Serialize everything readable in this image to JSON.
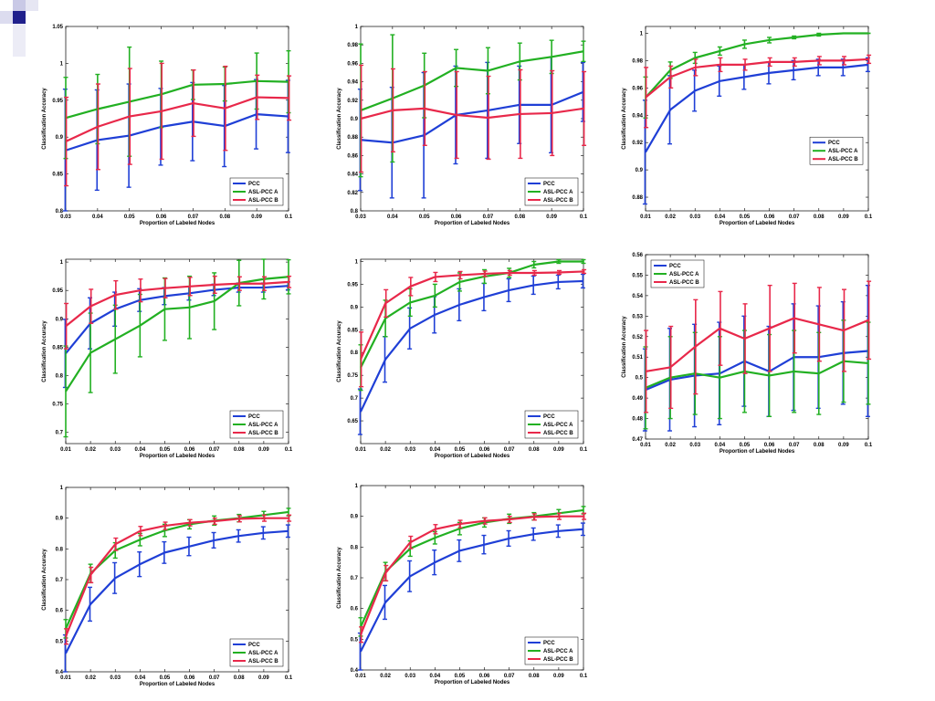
{
  "colors": {
    "PCC": "#1f3fd6",
    "ASL-PCC A": "#22b022",
    "ASL-PCC B": "#e8284a"
  },
  "chart_data": [
    {
      "type": "line",
      "xlabel": "Proportion of Labeled Nodes",
      "ylabel": "Classification Accuracy",
      "xlim": [
        0.03,
        0.1
      ],
      "ylim": [
        0.8,
        1.05
      ],
      "xticks": [
        0.03,
        0.04,
        0.05,
        0.06,
        0.07,
        0.08,
        0.09,
        0.1
      ],
      "xtick_labels": [
        "0.03",
        "0.04",
        "0.05",
        "0.06",
        "0.07",
        "0.08",
        "0.09",
        "0.1"
      ],
      "yticks": [
        0.8,
        0.85,
        0.9,
        0.95,
        1,
        1.05
      ],
      "ytick_labels": [
        "0.8",
        "0.85",
        "0.9",
        "0.95",
        "1",
        "1.05"
      ],
      "legend_loc": "bottom-right",
      "x": [
        0.03,
        0.04,
        0.05,
        0.06,
        0.07,
        0.08,
        0.09,
        0.1
      ],
      "series": [
        {
          "name": "PCC",
          "values": [
            0.882,
            0.896,
            0.902,
            0.914,
            0.921,
            0.915,
            0.931,
            0.928
          ],
          "err": [
            0.083,
            0.068,
            0.07,
            0.052,
            0.053,
            0.055,
            0.047,
            0.049
          ]
        },
        {
          "name": "ASL-PCC A",
          "values": [
            0.926,
            0.938,
            0.948,
            0.958,
            0.971,
            0.972,
            0.976,
            0.975
          ],
          "err": [
            0.055,
            0.047,
            0.074,
            0.045,
            0.02,
            0.023,
            0.038,
            0.042
          ]
        },
        {
          "name": "ASL-PCC B",
          "values": [
            0.894,
            0.914,
            0.928,
            0.935,
            0.946,
            0.939,
            0.954,
            0.953
          ],
          "err": [
            0.06,
            0.058,
            0.065,
            0.065,
            0.045,
            0.057,
            0.03,
            0.03
          ]
        }
      ]
    },
    {
      "type": "line",
      "xlabel": "Proportion of Labeled Nodes",
      "ylabel": "Classification Accuracy",
      "xlim": [
        0.03,
        0.1
      ],
      "ylim": [
        0.8,
        1
      ],
      "xticks": [
        0.03,
        0.04,
        0.05,
        0.06,
        0.07,
        0.08,
        0.09,
        0.1
      ],
      "xtick_labels": [
        "0.03",
        "0.04",
        "0.05",
        "0.06",
        "0.07",
        "0.08",
        "0.09",
        "0.1"
      ],
      "yticks": [
        0.8,
        0.82,
        0.84,
        0.86,
        0.88,
        0.9,
        0.92,
        0.94,
        0.96,
        0.98,
        1
      ],
      "ytick_labels": [
        "0.8",
        "0.82",
        "0.84",
        "0.86",
        "0.88",
        "0.9",
        "0.92",
        "0.94",
        "0.96",
        "0.98",
        "1"
      ],
      "legend_loc": "bottom-right",
      "x": [
        0.03,
        0.04,
        0.05,
        0.06,
        0.07,
        0.08,
        0.09,
        0.1
      ],
      "series": [
        {
          "name": "PCC",
          "values": [
            0.877,
            0.874,
            0.882,
            0.904,
            0.909,
            0.915,
            0.915,
            0.929
          ],
          "err": [
            0.055,
            0.06,
            0.068,
            0.053,
            0.052,
            0.042,
            0.052,
            0.032
          ]
        },
        {
          "name": "ASL-PCC A",
          "values": [
            0.909,
            0.922,
            0.936,
            0.955,
            0.952,
            0.962,
            0.967,
            0.973
          ],
          "err": [
            0.072,
            0.069,
            0.035,
            0.02,
            0.025,
            0.02,
            0.018,
            0.011
          ]
        },
        {
          "name": "ASL-PCC B",
          "values": [
            0.9,
            0.909,
            0.911,
            0.904,
            0.901,
            0.905,
            0.906,
            0.911
          ],
          "err": [
            0.058,
            0.045,
            0.04,
            0.047,
            0.045,
            0.048,
            0.046,
            0.04
          ]
        }
      ]
    },
    {
      "type": "line",
      "xlabel": "Proportion of Labeled Nodes",
      "ylabel": "Classification Accuracy",
      "xlim": [
        0.01,
        0.1
      ],
      "ylim": [
        0.87,
        1.005
      ],
      "xticks": [
        0.01,
        0.02,
        0.03,
        0.04,
        0.05,
        0.06,
        0.07,
        0.08,
        0.09,
        0.1
      ],
      "xtick_labels": [
        "0.01",
        "0.02",
        "0.03",
        "0.04",
        "0.05",
        "0.06",
        "0.07",
        "0.08",
        "0.09",
        "0.1"
      ],
      "yticks": [
        0.88,
        0.9,
        0.92,
        0.94,
        0.96,
        0.98,
        1
      ],
      "ytick_labels": [
        "0.88",
        "0.9",
        "0.92",
        "0.94",
        "0.96",
        "0.98",
        "1"
      ],
      "legend_loc": "center-right",
      "x": [
        0.01,
        0.02,
        0.03,
        0.04,
        0.05,
        0.06,
        0.07,
        0.08,
        0.09,
        0.1
      ],
      "series": [
        {
          "name": "PCC",
          "values": [
            0.913,
            0.944,
            0.958,
            0.965,
            0.968,
            0.971,
            0.973,
            0.975,
            0.975,
            0.977
          ],
          "err": [
            0.038,
            0.025,
            0.015,
            0.011,
            0.009,
            0.008,
            0.007,
            0.006,
            0.006,
            0.005
          ]
        },
        {
          "name": "ASL-PCC A",
          "values": [
            0.953,
            0.973,
            0.982,
            0.987,
            0.992,
            0.995,
            0.997,
            0.999,
            1.0,
            1.0
          ],
          "err": [
            0.015,
            0.006,
            0.004,
            0.003,
            0.003,
            0.002,
            0.001,
            0.001,
            0.0,
            0.0
          ]
        },
        {
          "name": "ASL-PCC B",
          "values": [
            0.953,
            0.968,
            0.975,
            0.977,
            0.977,
            0.979,
            0.979,
            0.98,
            0.98,
            0.981
          ],
          "err": [
            0.022,
            0.008,
            0.006,
            0.005,
            0.004,
            0.003,
            0.003,
            0.003,
            0.003,
            0.003
          ]
        }
      ]
    },
    {
      "type": "line",
      "xlabel": "Proportion of Labeled Nodes",
      "ylabel": "Classification Accuracy",
      "xlim": [
        0.01,
        0.1
      ],
      "ylim": [
        0.68,
        1.005
      ],
      "xticks": [
        0.01,
        0.02,
        0.03,
        0.04,
        0.05,
        0.06,
        0.07,
        0.08,
        0.09,
        0.1
      ],
      "xtick_labels": [
        "0.01",
        "0.02",
        "0.03",
        "0.04",
        "0.05",
        "0.06",
        "0.07",
        "0.08",
        "0.09",
        "0.1"
      ],
      "yticks": [
        0.7,
        0.75,
        0.8,
        0.85,
        0.9,
        0.95,
        1
      ],
      "ytick_labels": [
        "0.7",
        "0.75",
        "0.8",
        "0.85",
        "0.9",
        "0.95",
        "1"
      ],
      "legend_loc": "bottom-right",
      "x": [
        0.01,
        0.02,
        0.03,
        0.04,
        0.05,
        0.06,
        0.07,
        0.08,
        0.09,
        0.1
      ],
      "series": [
        {
          "name": "PCC",
          "values": [
            0.839,
            0.892,
            0.917,
            0.933,
            0.94,
            0.945,
            0.951,
            0.955,
            0.955,
            0.958
          ],
          "err": [
            0.06,
            0.045,
            0.03,
            0.02,
            0.015,
            0.012,
            0.01,
            0.008,
            0.008,
            0.007
          ]
        },
        {
          "name": "ASL-PCC A",
          "values": [
            0.772,
            0.84,
            0.864,
            0.888,
            0.917,
            0.92,
            0.931,
            0.963,
            0.97,
            0.974
          ],
          "err": [
            0.08,
            0.07,
            0.06,
            0.055,
            0.055,
            0.055,
            0.05,
            0.04,
            0.035,
            0.03
          ]
        },
        {
          "name": "ASL-PCC B",
          "values": [
            0.887,
            0.922,
            0.942,
            0.95,
            0.954,
            0.957,
            0.96,
            0.962,
            0.962,
            0.965
          ],
          "err": [
            0.04,
            0.03,
            0.025,
            0.02,
            0.017,
            0.016,
            0.015,
            0.012,
            0.012,
            0.01
          ]
        }
      ]
    },
    {
      "type": "line",
      "xlabel": "Proportion of Labeled Nodes",
      "ylabel": "Classification Accuracy",
      "xlim": [
        0.01,
        0.1
      ],
      "ylim": [
        0.6,
        1.005
      ],
      "xticks": [
        0.01,
        0.02,
        0.03,
        0.04,
        0.05,
        0.06,
        0.07,
        0.08,
        0.09,
        0.1
      ],
      "xtick_labels": [
        "0.01",
        "0.02",
        "0.03",
        "0.04",
        "0.05",
        "0.06",
        "0.07",
        "0.08",
        "0.09",
        "0.1"
      ],
      "yticks": [
        0.65,
        0.7,
        0.75,
        0.8,
        0.85,
        0.9,
        0.95,
        1
      ],
      "ytick_labels": [
        "0.65",
        "0.7",
        "0.75",
        "0.8",
        "0.85",
        "0.9",
        "0.95",
        "1"
      ],
      "legend_loc": "bottom-right",
      "x": [
        0.01,
        0.02,
        0.03,
        0.04,
        0.05,
        0.06,
        0.07,
        0.08,
        0.09,
        0.1
      ],
      "series": [
        {
          "name": "PCC",
          "values": [
            0.67,
            0.785,
            0.853,
            0.883,
            0.905,
            0.922,
            0.937,
            0.948,
            0.955,
            0.957
          ],
          "err": [
            0.05,
            0.05,
            0.045,
            0.04,
            0.035,
            0.03,
            0.025,
            0.02,
            0.015,
            0.015
          ]
        },
        {
          "name": "ASL-PCC A",
          "values": [
            0.767,
            0.875,
            0.91,
            0.925,
            0.955,
            0.967,
            0.975,
            0.993,
            1.0,
            1.0
          ],
          "err": [
            0.05,
            0.04,
            0.03,
            0.025,
            0.02,
            0.015,
            0.01,
            0.007,
            0.004,
            0.004
          ]
        },
        {
          "name": "ASL-PCC B",
          "values": [
            0.785,
            0.908,
            0.945,
            0.966,
            0.97,
            0.973,
            0.975,
            0.975,
            0.976,
            0.978
          ],
          "err": [
            0.06,
            0.03,
            0.02,
            0.01,
            0.008,
            0.006,
            0.005,
            0.005,
            0.004,
            0.004
          ]
        }
      ]
    },
    {
      "type": "line",
      "xlabel": "Proportion of Labeled Nodes",
      "ylabel": "Classification Accuracy",
      "xlim": [
        0.01,
        0.1
      ],
      "ylim": [
        0.47,
        0.56
      ],
      "xticks": [
        0.01,
        0.02,
        0.03,
        0.04,
        0.05,
        0.06,
        0.07,
        0.08,
        0.09,
        0.1
      ],
      "xtick_labels": [
        "0.01",
        "0.02",
        "0.03",
        "0.04",
        "0.05",
        "0.06",
        "0.07",
        "0.08",
        "0.09",
        "0.1"
      ],
      "yticks": [
        0.47,
        0.48,
        0.49,
        0.5,
        0.51,
        0.52,
        0.53,
        0.54,
        0.55,
        0.56
      ],
      "ytick_labels": [
        "0.47",
        "0.48",
        "0.49",
        "0.5",
        "0.51",
        "0.52",
        "0.53",
        "0.54",
        "0.55",
        "0.56"
      ],
      "legend_loc": "top-left",
      "x": [
        0.01,
        0.02,
        0.03,
        0.04,
        0.05,
        0.06,
        0.07,
        0.08,
        0.09,
        0.1
      ],
      "series": [
        {
          "name": "PCC",
          "values": [
            0.494,
            0.499,
            0.501,
            0.502,
            0.508,
            0.503,
            0.51,
            0.51,
            0.512,
            0.513
          ],
          "err": [
            0.02,
            0.025,
            0.025,
            0.025,
            0.022,
            0.022,
            0.026,
            0.025,
            0.025,
            0.032
          ]
        },
        {
          "name": "ASL-PCC A",
          "values": [
            0.495,
            0.5,
            0.502,
            0.5,
            0.503,
            0.501,
            0.503,
            0.502,
            0.508,
            0.507
          ],
          "err": [
            0.02,
            0.02,
            0.02,
            0.02,
            0.02,
            0.02,
            0.02,
            0.02,
            0.02,
            0.02
          ]
        },
        {
          "name": "ASL-PCC B",
          "values": [
            0.503,
            0.505,
            0.515,
            0.524,
            0.519,
            0.524,
            0.529,
            0.526,
            0.523,
            0.528
          ],
          "err": [
            0.02,
            0.02,
            0.023,
            0.018,
            0.017,
            0.021,
            0.017,
            0.018,
            0.02,
            0.019
          ]
        }
      ]
    },
    {
      "type": "line",
      "xlabel": "Proportion of Labeled Nodes",
      "ylabel": "Classification Accuracy",
      "xlim": [
        0.01,
        0.1
      ],
      "ylim": [
        0.4,
        1.0
      ],
      "xticks": [
        0.01,
        0.02,
        0.03,
        0.04,
        0.05,
        0.06,
        0.07,
        0.08,
        0.09,
        0.1
      ],
      "xtick_labels": [
        "0.01",
        "0.02",
        "0.03",
        "0.04",
        "0.05",
        "0.06",
        "0.07",
        "0.08",
        "0.09",
        "0.1"
      ],
      "yticks": [
        0.4,
        0.5,
        0.6,
        0.7,
        0.8,
        0.9,
        1
      ],
      "ytick_labels": [
        "0.4",
        "0.5",
        "0.6",
        "0.7",
        "0.8",
        "0.9",
        "1"
      ],
      "legend_loc": "bottom-right",
      "x": [
        0.01,
        0.02,
        0.03,
        0.04,
        0.05,
        0.06,
        0.07,
        0.08,
        0.09,
        0.1
      ],
      "series": [
        {
          "name": "PCC",
          "values": [
            0.46,
            0.62,
            0.705,
            0.75,
            0.788,
            0.808,
            0.828,
            0.842,
            0.852,
            0.858
          ],
          "err": [
            0.06,
            0.055,
            0.05,
            0.04,
            0.035,
            0.03,
            0.025,
            0.02,
            0.02,
            0.02
          ]
        },
        {
          "name": "ASL-PCC A",
          "values": [
            0.54,
            0.72,
            0.795,
            0.83,
            0.86,
            0.88,
            0.892,
            0.9,
            0.91,
            0.92
          ],
          "err": [
            0.03,
            0.03,
            0.025,
            0.02,
            0.02,
            0.015,
            0.015,
            0.012,
            0.012,
            0.012
          ]
        },
        {
          "name": "ASL-PCC B",
          "values": [
            0.515,
            0.715,
            0.815,
            0.858,
            0.875,
            0.885,
            0.89,
            0.898,
            0.9,
            0.9
          ],
          "err": [
            0.025,
            0.025,
            0.02,
            0.015,
            0.012,
            0.01,
            0.01,
            0.01,
            0.01,
            0.01
          ]
        }
      ]
    },
    {
      "type": "line",
      "xlabel": "Proportion of Labeled Nodes",
      "ylabel": "Classification Accuracy",
      "xlim": [
        0.01,
        0.1
      ],
      "ylim": [
        0.4,
        1.0
      ],
      "xticks": [
        0.01,
        0.02,
        0.03,
        0.04,
        0.05,
        0.06,
        0.07,
        0.08,
        0.09,
        0.1
      ],
      "xtick_labels": [
        "0.01",
        "0.02",
        "0.03",
        "0.04",
        "0.05",
        "0.06",
        "0.07",
        "0.08",
        "0.09",
        "0.1"
      ],
      "yticks": [
        0.4,
        0.5,
        0.6,
        0.7,
        0.8,
        0.9,
        1
      ],
      "ytick_labels": [
        "0.4",
        "0.5",
        "0.6",
        "0.7",
        "0.8",
        "0.9",
        "1"
      ],
      "legend_loc": "bottom-right",
      "x": [
        0.01,
        0.02,
        0.03,
        0.04,
        0.05,
        0.06,
        0.07,
        0.08,
        0.09,
        0.1
      ],
      "series": [
        {
          "name": "PCC",
          "values": [
            0.46,
            0.62,
            0.705,
            0.75,
            0.788,
            0.808,
            0.828,
            0.842,
            0.852,
            0.858
          ],
          "err": [
            0.06,
            0.055,
            0.05,
            0.04,
            0.035,
            0.03,
            0.025,
            0.02,
            0.02,
            0.02
          ]
        },
        {
          "name": "ASL-PCC A",
          "values": [
            0.54,
            0.72,
            0.795,
            0.83,
            0.86,
            0.88,
            0.892,
            0.9,
            0.91,
            0.92
          ],
          "err": [
            0.03,
            0.03,
            0.025,
            0.02,
            0.02,
            0.015,
            0.015,
            0.012,
            0.012,
            0.012
          ]
        },
        {
          "name": "ASL-PCC B",
          "values": [
            0.515,
            0.715,
            0.815,
            0.858,
            0.875,
            0.885,
            0.89,
            0.898,
            0.9,
            0.9
          ],
          "err": [
            0.025,
            0.025,
            0.02,
            0.015,
            0.012,
            0.01,
            0.01,
            0.01,
            0.01,
            0.01
          ]
        }
      ]
    }
  ]
}
